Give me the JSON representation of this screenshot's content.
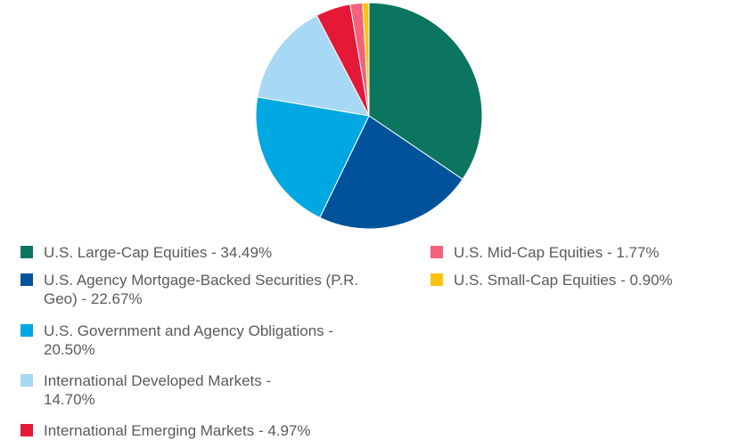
{
  "chart_data": {
    "type": "pie",
    "title": "",
    "legend_placement": "bottom",
    "slices": [
      {
        "label": "U.S. Large-Cap Equities - 34.49%",
        "value": 34.49,
        "color": "#0b7560"
      },
      {
        "label": "U.S. Agency Mortgage-Backed Securities (P.R. Geo) - 22.67%",
        "value": 22.67,
        "color": "#00539b"
      },
      {
        "label": "U.S. Government and Agency Obligations - 20.50%",
        "value": 20.5,
        "color": "#00a8e1"
      },
      {
        "label": "International Developed Markets - 14.70%",
        "value": 14.7,
        "color": "#a7d8f4"
      },
      {
        "label": "International Emerging Markets - 4.97%",
        "value": 4.97,
        "color": "#e31937"
      },
      {
        "label": "U.S. Mid-Cap Equities - 1.77%",
        "value": 1.77,
        "color": "#f2627a"
      },
      {
        "label": "U.S. Small-Cap Equities - 0.90%",
        "value": 0.9,
        "color": "#ffc20e"
      }
    ]
  }
}
